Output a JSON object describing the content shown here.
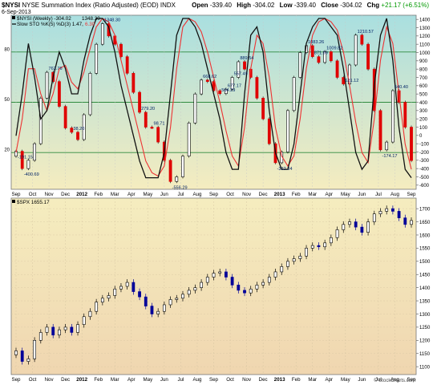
{
  "header": {
    "symbol": "$NYSI",
    "title": "NYSE Summation Index (Ratio Adjusted) (EOD)",
    "exchange": "INDX",
    "date": "6-Sep-2013",
    "open_label": "Open",
    "open": "-339.40",
    "high_label": "High",
    "high": "-304.02",
    "low_label": "Low",
    "low": "-339.40",
    "close_label": "Close",
    "close": "-304.02",
    "chg_label": "Chg",
    "chg": "+21.17 (+6.51%)",
    "watermark": "© StockCharts.com"
  },
  "legend": {
    "nysi": "$NYSI (Weekly) -304.02",
    "nysi_tail": "1348.30",
    "sto": "Slow STO %K(5) %D(3) 1.47,",
    "sto_d": "6.30",
    "spx": "$SPX 1655.17"
  },
  "colors": {
    "panel1_bg_top": "#a9dfe0",
    "panel1_bg_bottom": "#f5ecbf",
    "panel2_bg_top": "#f5edbf",
    "panel2_bg_bottom": "#f0d6b0",
    "up_candle": "#ffffff",
    "down_candle": "#e00000",
    "sto_k": "#111111",
    "sto_d": "#ee3333",
    "spx_bar_up": "#000000",
    "spx_bar_dn": "#000099"
  },
  "chart_data": [
    {
      "type": "line",
      "title": "NYSE Summation Index (Ratio Adjusted) (EOD)",
      "x_labels": [
        "Sep",
        "Oct",
        "Nov",
        "Dec",
        "2012",
        "Feb",
        "Mar",
        "Apr",
        "May",
        "Jun",
        "Jul",
        "Aug",
        "Sep",
        "Oct",
        "Nov",
        "Dec",
        "2013",
        "Feb",
        "Mar",
        "Apr",
        "May",
        "Jun",
        "Jul",
        "Aug",
        "Sep"
      ],
      "nysi_ylim": [
        -650,
        1450
      ],
      "nysi_ticks": [
        -600,
        -500,
        -400,
        -300,
        -200,
        -100,
        0,
        100,
        200,
        300,
        400,
        500,
        600,
        700,
        800,
        900,
        1000,
        1100,
        1200,
        1300,
        1400
      ],
      "sto_ylim": [
        0,
        100
      ],
      "sto_ticks": [
        20,
        50,
        80
      ],
      "sto_k": [
        30,
        55,
        85,
        65,
        40,
        45,
        65,
        80,
        70,
        55,
        55,
        75,
        90,
        100,
        100,
        95,
        80,
        60,
        45,
        30,
        15,
        5,
        5,
        5,
        20,
        55,
        90,
        100,
        100,
        95,
        85,
        70,
        55,
        40,
        20,
        10,
        10,
        55,
        90,
        95,
        80,
        45,
        20,
        10,
        10,
        25,
        55,
        85,
        95,
        100,
        100,
        95,
        90,
        70,
        45,
        20,
        10,
        15,
        60,
        90,
        100,
        75,
        35,
        10,
        5
      ],
      "sto_d": [
        20,
        40,
        70,
        70,
        55,
        45,
        55,
        70,
        72,
        62,
        58,
        68,
        82,
        95,
        100,
        98,
        90,
        75,
        60,
        45,
        30,
        15,
        8,
        6,
        12,
        35,
        70,
        95,
        100,
        98,
        92,
        80,
        65,
        50,
        33,
        18,
        12,
        35,
        70,
        90,
        85,
        65,
        35,
        18,
        12,
        18,
        40,
        70,
        90,
        98,
        100,
        98,
        93,
        80,
        60,
        38,
        20,
        14,
        40,
        75,
        95,
        85,
        55,
        25,
        10
      ],
      "nysi": [
        -191,
        -400,
        -300,
        -100,
        450,
        762,
        650,
        350,
        90,
        38,
        -50,
        250,
        750,
        1100,
        1348,
        1200,
        1100,
        950,
        750,
        520,
        279,
        100,
        98,
        -80,
        -300,
        -556,
        -500,
        -250,
        150,
        500,
        668,
        650,
        540,
        504,
        557,
        700,
        889,
        800,
        700,
        450,
        200,
        -100,
        -330,
        -200,
        300,
        700,
        1000,
        1083,
        950,
        880,
        1010,
        900,
        700,
        620,
        850,
        1210,
        1100,
        800,
        300,
        -174,
        -80,
        540,
        400,
        100,
        -304
      ],
      "annotations": [
        "-191.15",
        "-400.69",
        "762.76",
        "38.20",
        "1348.30",
        "279.20",
        "98.71",
        "-556.29",
        "668.62",
        "504.29",
        "677.17",
        "557.49",
        "889.54",
        "-332.34",
        "1083.26",
        "871.99",
        "1009.82",
        "621.12",
        "1210.57",
        "-174.17",
        "540.40"
      ]
    },
    {
      "type": "bar",
      "title": "$SPX",
      "x_labels": [
        "Sep",
        "Oct",
        "Nov",
        "Dec",
        "2012",
        "Feb",
        "Mar",
        "Apr",
        "May",
        "Jun",
        "Jul",
        "Aug",
        "Sep",
        "Oct",
        "Nov",
        "Dec",
        "2013",
        "Feb",
        "Mar",
        "Apr",
        "May",
        "Jun",
        "Jul",
        "Aug",
        "Sep"
      ],
      "ylim": [
        1070,
        1740
      ],
      "y_ticks": [
        1100,
        1150,
        1200,
        1250,
        1300,
        1350,
        1400,
        1450,
        1500,
        1550,
        1600,
        1650,
        1700
      ],
      "close": [
        1160,
        1120,
        1130,
        1200,
        1230,
        1250,
        1220,
        1240,
        1250,
        1230,
        1260,
        1290,
        1310,
        1345,
        1360,
        1370,
        1395,
        1405,
        1420,
        1385,
        1365,
        1330,
        1300,
        1310,
        1335,
        1355,
        1360,
        1375,
        1390,
        1400,
        1420,
        1440,
        1455,
        1460,
        1440,
        1410,
        1390,
        1380,
        1395,
        1410,
        1420,
        1440,
        1460,
        1480,
        1500,
        1510,
        1520,
        1550,
        1560,
        1555,
        1570,
        1590,
        1620,
        1640,
        1650,
        1630,
        1610,
        1650,
        1680,
        1690,
        1700,
        1690,
        1665,
        1640,
        1655
      ],
      "last": 1655.17
    }
  ]
}
